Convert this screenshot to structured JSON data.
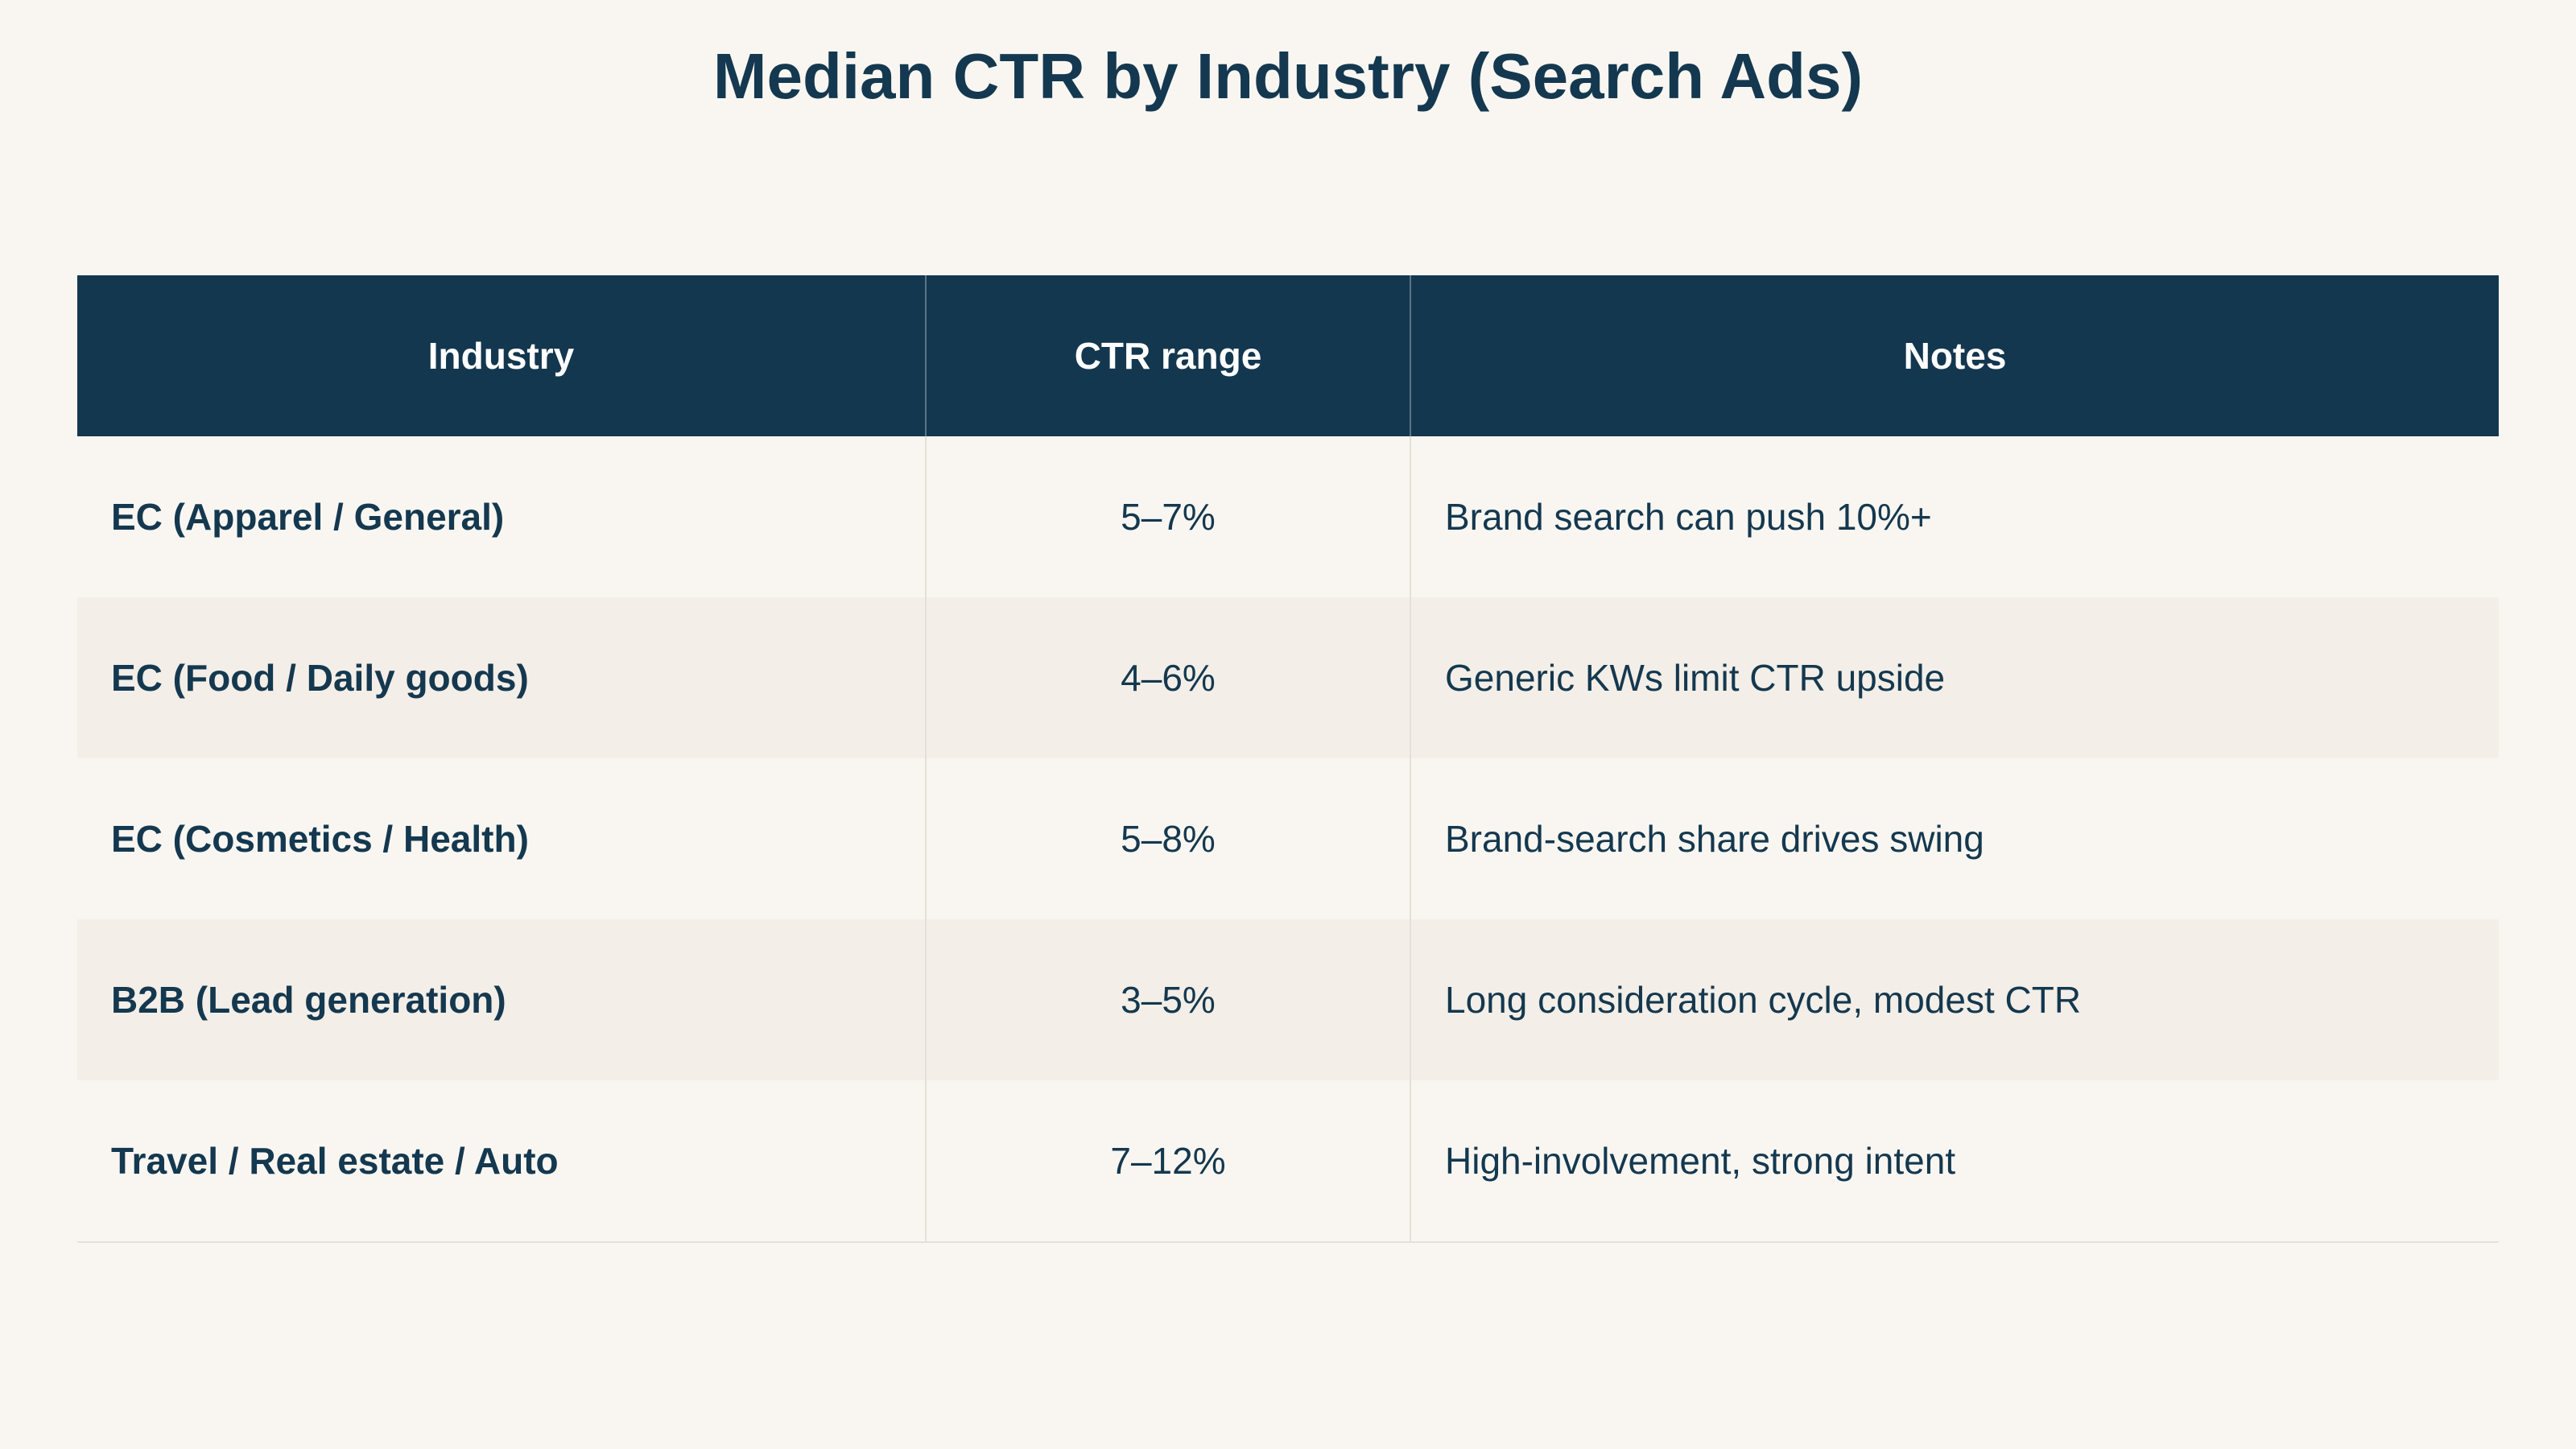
{
  "chart_data": {
    "type": "table",
    "title": "Median CTR by Industry (Search Ads)",
    "columns": [
      "Industry",
      "CTR range",
      "Notes"
    ],
    "rows": [
      {
        "industry": "EC (Apparel / General)",
        "ctr_range": "5–7%",
        "notes": "Brand search can push 10%+"
      },
      {
        "industry": "EC (Food / Daily goods)",
        "ctr_range": "4–6%",
        "notes": "Generic KWs limit CTR upside"
      },
      {
        "industry": "EC (Cosmetics / Health)",
        "ctr_range": "5–8%",
        "notes": "Brand-search share drives swing"
      },
      {
        "industry": "B2B (Lead generation)",
        "ctr_range": "3–5%",
        "notes": "Long consideration cycle, modest CTR"
      },
      {
        "industry": "Travel / Real estate / Auto",
        "ctr_range": "7–12%",
        "notes": "High-involvement, strong intent"
      }
    ]
  },
  "colors": {
    "background": "#f9f6f1",
    "header_bg": "#13374f",
    "header_text": "#ffffff",
    "text": "#14384f",
    "row_alt_bg": "#f3eee7"
  }
}
